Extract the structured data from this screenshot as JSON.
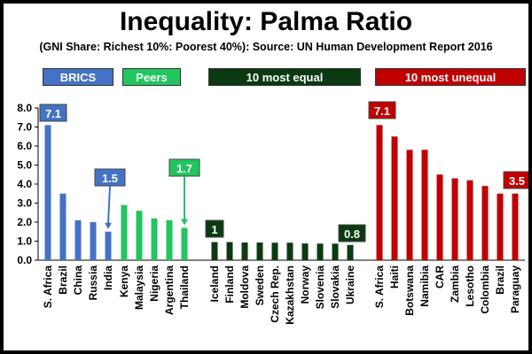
{
  "title": "Inequality: Palma Ratio",
  "subtitle": "(GNI Share: Richest 10%: Poorest 40%):  Source: UN Human Development Report 2016",
  "groups": {
    "brics": "BRICS",
    "peers": "Peers",
    "most_equal": "10 most equal",
    "most_unequal": "10 most unequal"
  },
  "colors": {
    "brics": "#4472C4",
    "peers": "#22C55E",
    "most_equal": "#0B3A12",
    "most_unequal": "#C00000"
  },
  "callouts": [
    "7.1",
    "1.5",
    "1.7",
    "1",
    "0.8",
    "7.1",
    "3.5"
  ],
  "chart_data": {
    "type": "bar",
    "ylim": [
      0,
      8
    ],
    "yticks": [
      "0.0",
      "1.0",
      "2.0",
      "3.0",
      "4.0",
      "5.0",
      "6.0",
      "7.0",
      "8.0"
    ],
    "grid": false,
    "groups": [
      {
        "name": "BRICS",
        "categories": [
          "S. Africa",
          "Brazil",
          "China",
          "Russia",
          "India"
        ],
        "values": [
          7.1,
          3.5,
          2.1,
          2.0,
          1.5
        ]
      },
      {
        "name": "Peers",
        "categories": [
          "Kenya",
          "Malaysia",
          "Nigeria",
          "Argentina",
          "Thailand"
        ],
        "values": [
          2.9,
          2.6,
          2.2,
          2.1,
          1.7
        ]
      },
      {
        "name": "10 most equal",
        "categories": [
          "Iceland",
          "Finland",
          "Moldova",
          "Sweden",
          "Czech Rep.",
          "Kazakhstan",
          "Norway",
          "Slovenia",
          "Slovakia",
          "Ukraine"
        ],
        "values": [
          0.95,
          0.95,
          0.93,
          0.93,
          0.92,
          0.92,
          0.88,
          0.87,
          0.87,
          0.8
        ]
      },
      {
        "name": "10 most unequal",
        "categories": [
          "S. Africa",
          "Haiti",
          "Botswana",
          "Namibia",
          "CAR",
          "Zambia",
          "Lesotho",
          "Colombia",
          "Brazil",
          "Paraguay"
        ],
        "values": [
          7.1,
          6.5,
          5.8,
          5.8,
          4.5,
          4.3,
          4.2,
          3.9,
          3.5,
          3.5
        ]
      }
    ]
  }
}
